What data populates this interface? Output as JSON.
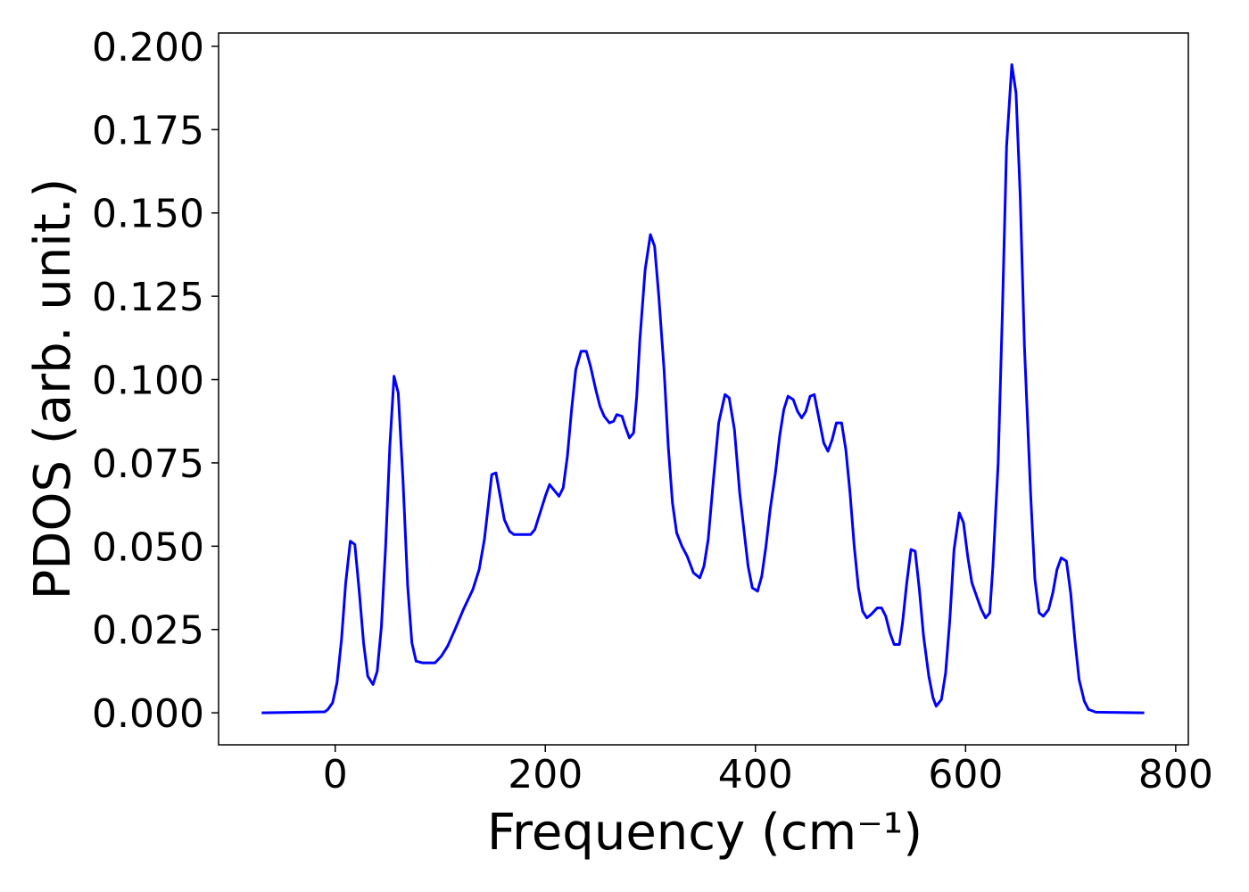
{
  "chart_data": {
    "type": "line",
    "xlabel": "Frequency (cm⁻¹)",
    "ylabel": "PDOS (arb. unit.)",
    "xlim": [
      -111,
      812
    ],
    "ylim": [
      -0.0096,
      0.204
    ],
    "xticks": [
      0,
      200,
      400,
      600,
      800
    ],
    "yticks": [
      {
        "value": 0,
        "label": "0.000"
      },
      {
        "value": 0.025,
        "label": "0.025"
      },
      {
        "value": 0.05,
        "label": "0.050"
      },
      {
        "value": 0.075,
        "label": "0.075"
      },
      {
        "value": 0.1,
        "label": "0.100"
      },
      {
        "value": 0.125,
        "label": "0.125"
      },
      {
        "value": 0.15,
        "label": "0.150"
      },
      {
        "value": 0.175,
        "label": "0.175"
      },
      {
        "value": 0.2,
        "label": "0.200"
      }
    ],
    "grid": false,
    "series": [
      {
        "color": "#0000ff",
        "x": [
          -70,
          -10,
          -7,
          -2.5,
          1.7,
          6,
          10,
          14.4,
          18.7,
          23,
          27,
          31,
          36,
          40,
          44,
          48,
          52,
          56,
          60,
          64.5,
          69,
          73,
          77,
          83,
          95,
          101,
          107,
          114,
          122,
          131,
          137,
          142,
          146,
          149,
          153,
          157,
          161,
          166,
          170,
          186,
          190,
          194,
          200,
          204,
          213,
          217,
          221,
          225,
          229,
          234,
          239,
          243,
          248,
          252,
          256,
          261,
          265,
          268,
          273,
          276,
          280,
          284,
          287,
          290,
          295,
          300,
          304,
          308,
          313,
          317,
          321,
          325,
          330,
          335,
          341,
          347,
          351,
          355,
          360,
          365,
          371,
          375,
          380,
          385,
          389,
          393,
          397,
          402,
          406,
          410,
          414,
          419,
          423,
          427,
          431,
          436,
          440,
          444,
          448,
          452,
          456,
          460,
          465,
          469,
          473,
          477,
          482,
          486,
          490,
          494,
          498,
          502,
          506,
          510,
          516,
          520,
          524,
          528,
          532,
          537,
          540,
          544,
          548,
          552,
          556,
          560,
          565,
          569,
          572,
          577,
          581,
          585,
          589,
          594,
          598,
          602,
          606,
          611,
          615,
          619,
          623,
          626,
          631,
          635,
          639,
          644,
          648,
          652,
          656,
          662,
          666,
          670,
          674,
          679,
          683,
          687,
          691,
          696,
          700,
          704,
          708,
          713,
          717,
          724,
          770
        ],
        "values": [
          0,
          0.0003,
          0.001,
          0.003,
          0.009,
          0.022,
          0.039,
          0.0515,
          0.0505,
          0.036,
          0.021,
          0.011,
          0.0085,
          0.0125,
          0.026,
          0.05,
          0.08,
          0.101,
          0.096,
          0.07,
          0.038,
          0.021,
          0.0155,
          0.015,
          0.015,
          0.017,
          0.02,
          0.025,
          0.031,
          0.037,
          0.043,
          0.052,
          0.063,
          0.0715,
          0.072,
          0.065,
          0.058,
          0.0545,
          0.0535,
          0.0535,
          0.055,
          0.059,
          0.065,
          0.0685,
          0.065,
          0.0675,
          0.077,
          0.091,
          0.103,
          0.1085,
          0.1085,
          0.104,
          0.097,
          0.092,
          0.089,
          0.087,
          0.0875,
          0.0895,
          0.089,
          0.086,
          0.0825,
          0.084,
          0.095,
          0.112,
          0.133,
          0.1435,
          0.14,
          0.125,
          0.103,
          0.08,
          0.063,
          0.054,
          0.05,
          0.047,
          0.042,
          0.0405,
          0.044,
          0.052,
          0.07,
          0.087,
          0.0955,
          0.0945,
          0.085,
          0.066,
          0.055,
          0.044,
          0.0375,
          0.0365,
          0.041,
          0.05,
          0.061,
          0.072,
          0.083,
          0.091,
          0.095,
          0.094,
          0.0905,
          0.0885,
          0.0905,
          0.095,
          0.0955,
          0.089,
          0.081,
          0.0785,
          0.082,
          0.087,
          0.087,
          0.079,
          0.066,
          0.05,
          0.0375,
          0.0305,
          0.0285,
          0.0295,
          0.0315,
          0.0315,
          0.029,
          0.024,
          0.0205,
          0.0205,
          0.027,
          0.039,
          0.049,
          0.0485,
          0.037,
          0.023,
          0.011,
          0.0045,
          0.002,
          0.004,
          0.012,
          0.028,
          0.049,
          0.06,
          0.057,
          0.047,
          0.039,
          0.0345,
          0.031,
          0.0285,
          0.03,
          0.044,
          0.075,
          0.12,
          0.17,
          0.1945,
          0.186,
          0.155,
          0.11,
          0.065,
          0.04,
          0.03,
          0.029,
          0.031,
          0.036,
          0.043,
          0.0465,
          0.0455,
          0.036,
          0.022,
          0.01,
          0.0035,
          0.001,
          0.0002,
          0
        ]
      }
    ]
  }
}
